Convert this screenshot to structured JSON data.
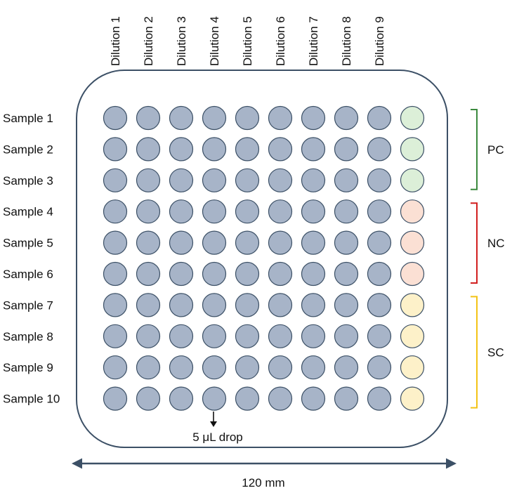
{
  "columns": [
    "Dilution 1",
    "Dilution 2",
    "Dilution 3",
    "Dilution 4",
    "Dilution 5",
    "Dilution 6",
    "Dilution 7",
    "Dilution 8",
    "Dilution 9"
  ],
  "rows": [
    "Sample 1",
    "Sample 2",
    "Sample 3",
    "Sample 4",
    "Sample 5",
    "Sample 6",
    "Sample 7",
    "Sample 8",
    "Sample 9",
    "Sample 10"
  ],
  "groups": [
    {
      "label": "PC",
      "rows": [
        0,
        2
      ],
      "color": "#3b8a3e",
      "fill": "#dcefd8"
    },
    {
      "label": "NC",
      "rows": [
        3,
        5
      ],
      "color": "#d21f1f",
      "fill": "#fbe0d4"
    },
    {
      "label": "SC",
      "rows": [
        6,
        9
      ],
      "color": "#f3c316",
      "fill": "#fdf1c9"
    }
  ],
  "colors": {
    "well_fill": "#a7b4c8",
    "well_stroke": "#3c5066",
    "plate_stroke": "#3c5066",
    "arrow": "#3c5066"
  },
  "annotations": {
    "drop_label": "5 μL drop",
    "width_label": "120 mm"
  }
}
